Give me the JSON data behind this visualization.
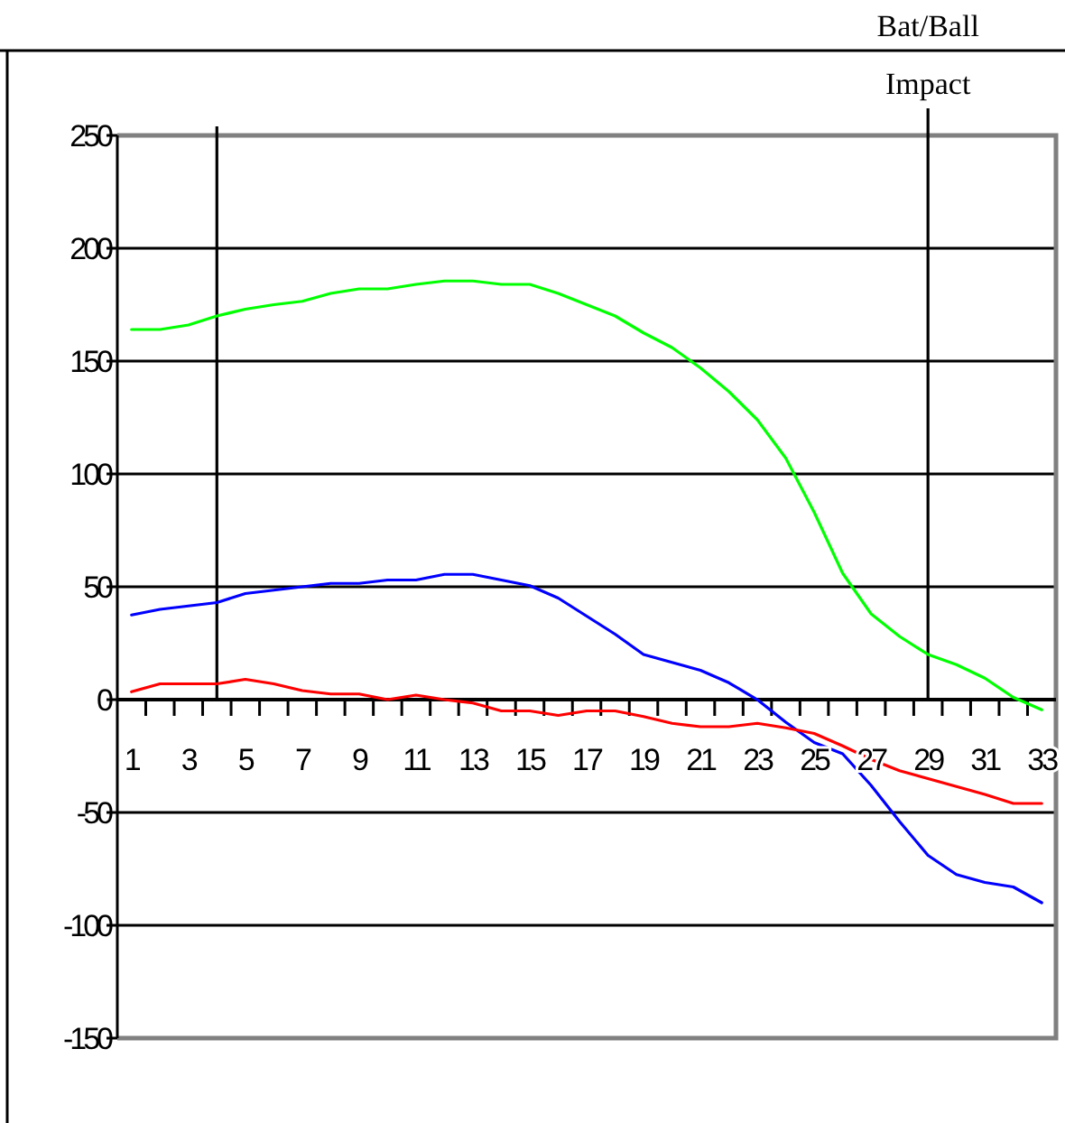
{
  "chart_data": {
    "type": "line",
    "x": [
      1,
      2,
      3,
      4,
      5,
      6,
      7,
      8,
      9,
      10,
      11,
      12,
      13,
      14,
      15,
      16,
      17,
      18,
      19,
      20,
      21,
      22,
      23,
      24,
      25,
      26,
      27,
      28,
      29,
      30,
      31,
      32,
      33
    ],
    "xlim": [
      0.5,
      33.5
    ],
    "xticks": [
      1,
      3,
      5,
      7,
      9,
      11,
      13,
      15,
      17,
      19,
      21,
      23,
      25,
      27,
      29,
      31,
      33,
      {
        "value": 1.5,
        "label": null
      },
      {
        "value": 2.5,
        "label": null
      },
      {
        "value": 3.5,
        "label": null
      },
      {
        "value": 4.5,
        "label": null
      },
      {
        "value": 5.5,
        "label": null
      },
      {
        "value": 6.5,
        "label": null
      },
      {
        "value": 7.5,
        "label": null
      },
      {
        "value": 8.5,
        "label": null
      },
      {
        "value": 9.5,
        "label": null
      },
      {
        "value": 10.5,
        "label": null
      },
      {
        "value": 11.5,
        "label": null
      },
      {
        "value": 12.5,
        "label": null
      },
      {
        "value": 13.5,
        "label": null
      },
      {
        "value": 14.5,
        "label": null
      },
      {
        "value": 15.5,
        "label": null
      },
      {
        "value": 16.5,
        "label": null
      },
      {
        "value": 17.5,
        "label": null
      },
      {
        "value": 18.5,
        "label": null
      },
      {
        "value": 19.5,
        "label": null
      },
      {
        "value": 20.5,
        "label": null
      },
      {
        "value": 21.5,
        "label": null
      },
      {
        "value": 22.5,
        "label": null
      },
      {
        "value": 23.5,
        "label": null
      },
      {
        "value": 24.5,
        "label": null
      },
      {
        "value": 25.5,
        "label": null
      },
      {
        "value": 26.5,
        "label": null
      },
      {
        "value": 27.5,
        "label": null
      },
      {
        "value": 28.5,
        "label": null
      },
      {
        "value": 29.5,
        "label": null
      },
      {
        "value": 30.5,
        "label": null
      },
      {
        "value": 31.5,
        "label": null
      },
      {
        "value": 32.5,
        "label": null
      }
    ],
    "ylim": [
      -150,
      250
    ],
    "yticks": [
      -150,
      -100,
      -50,
      0,
      50,
      100,
      150,
      200,
      250
    ],
    "grid": "y",
    "series": [
      {
        "color": "#00ff00",
        "values": [
          164,
          164,
          166,
          170,
          173,
          175,
          176.5,
          180,
          182,
          182,
          184,
          185.5,
          185.5,
          184,
          184,
          180,
          175,
          170,
          162.5,
          156,
          147,
          136.5,
          124,
          107,
          83,
          56,
          38,
          28,
          20,
          15.5,
          9.5,
          1,
          -4.5
        ]
      },
      {
        "color": "#0000ff",
        "values": [
          37.5,
          40,
          41.5,
          43,
          47,
          48.5,
          50,
          51.5,
          51.5,
          53,
          53,
          55.5,
          55.5,
          53,
          50.5,
          45,
          37,
          29,
          20,
          16.5,
          13,
          7.5,
          0,
          -10,
          -19,
          -24,
          -38,
          -54,
          -69,
          -77.5,
          -81,
          -83,
          -90
        ]
      },
      {
        "color": "#ff0000",
        "values": [
          3.5,
          7,
          7,
          7,
          9,
          7,
          4,
          2.5,
          2.5,
          0,
          2,
          0,
          -1.5,
          -5,
          -5,
          -7,
          -5,
          -5,
          -7.5,
          -10.5,
          -12,
          -12,
          -10.5,
          -12.5,
          -15,
          -20.5,
          -26.5,
          -31.5,
          -35,
          -38.5,
          -42,
          -46,
          -46
        ]
      }
    ],
    "ref_lines": [
      {
        "axis": "x",
        "value": 4,
        "label": null,
        "color": "#000000"
      },
      {
        "axis": "x",
        "value": 29,
        "label": "Bat/Ball Impact",
        "color": "#000000"
      }
    ]
  }
}
